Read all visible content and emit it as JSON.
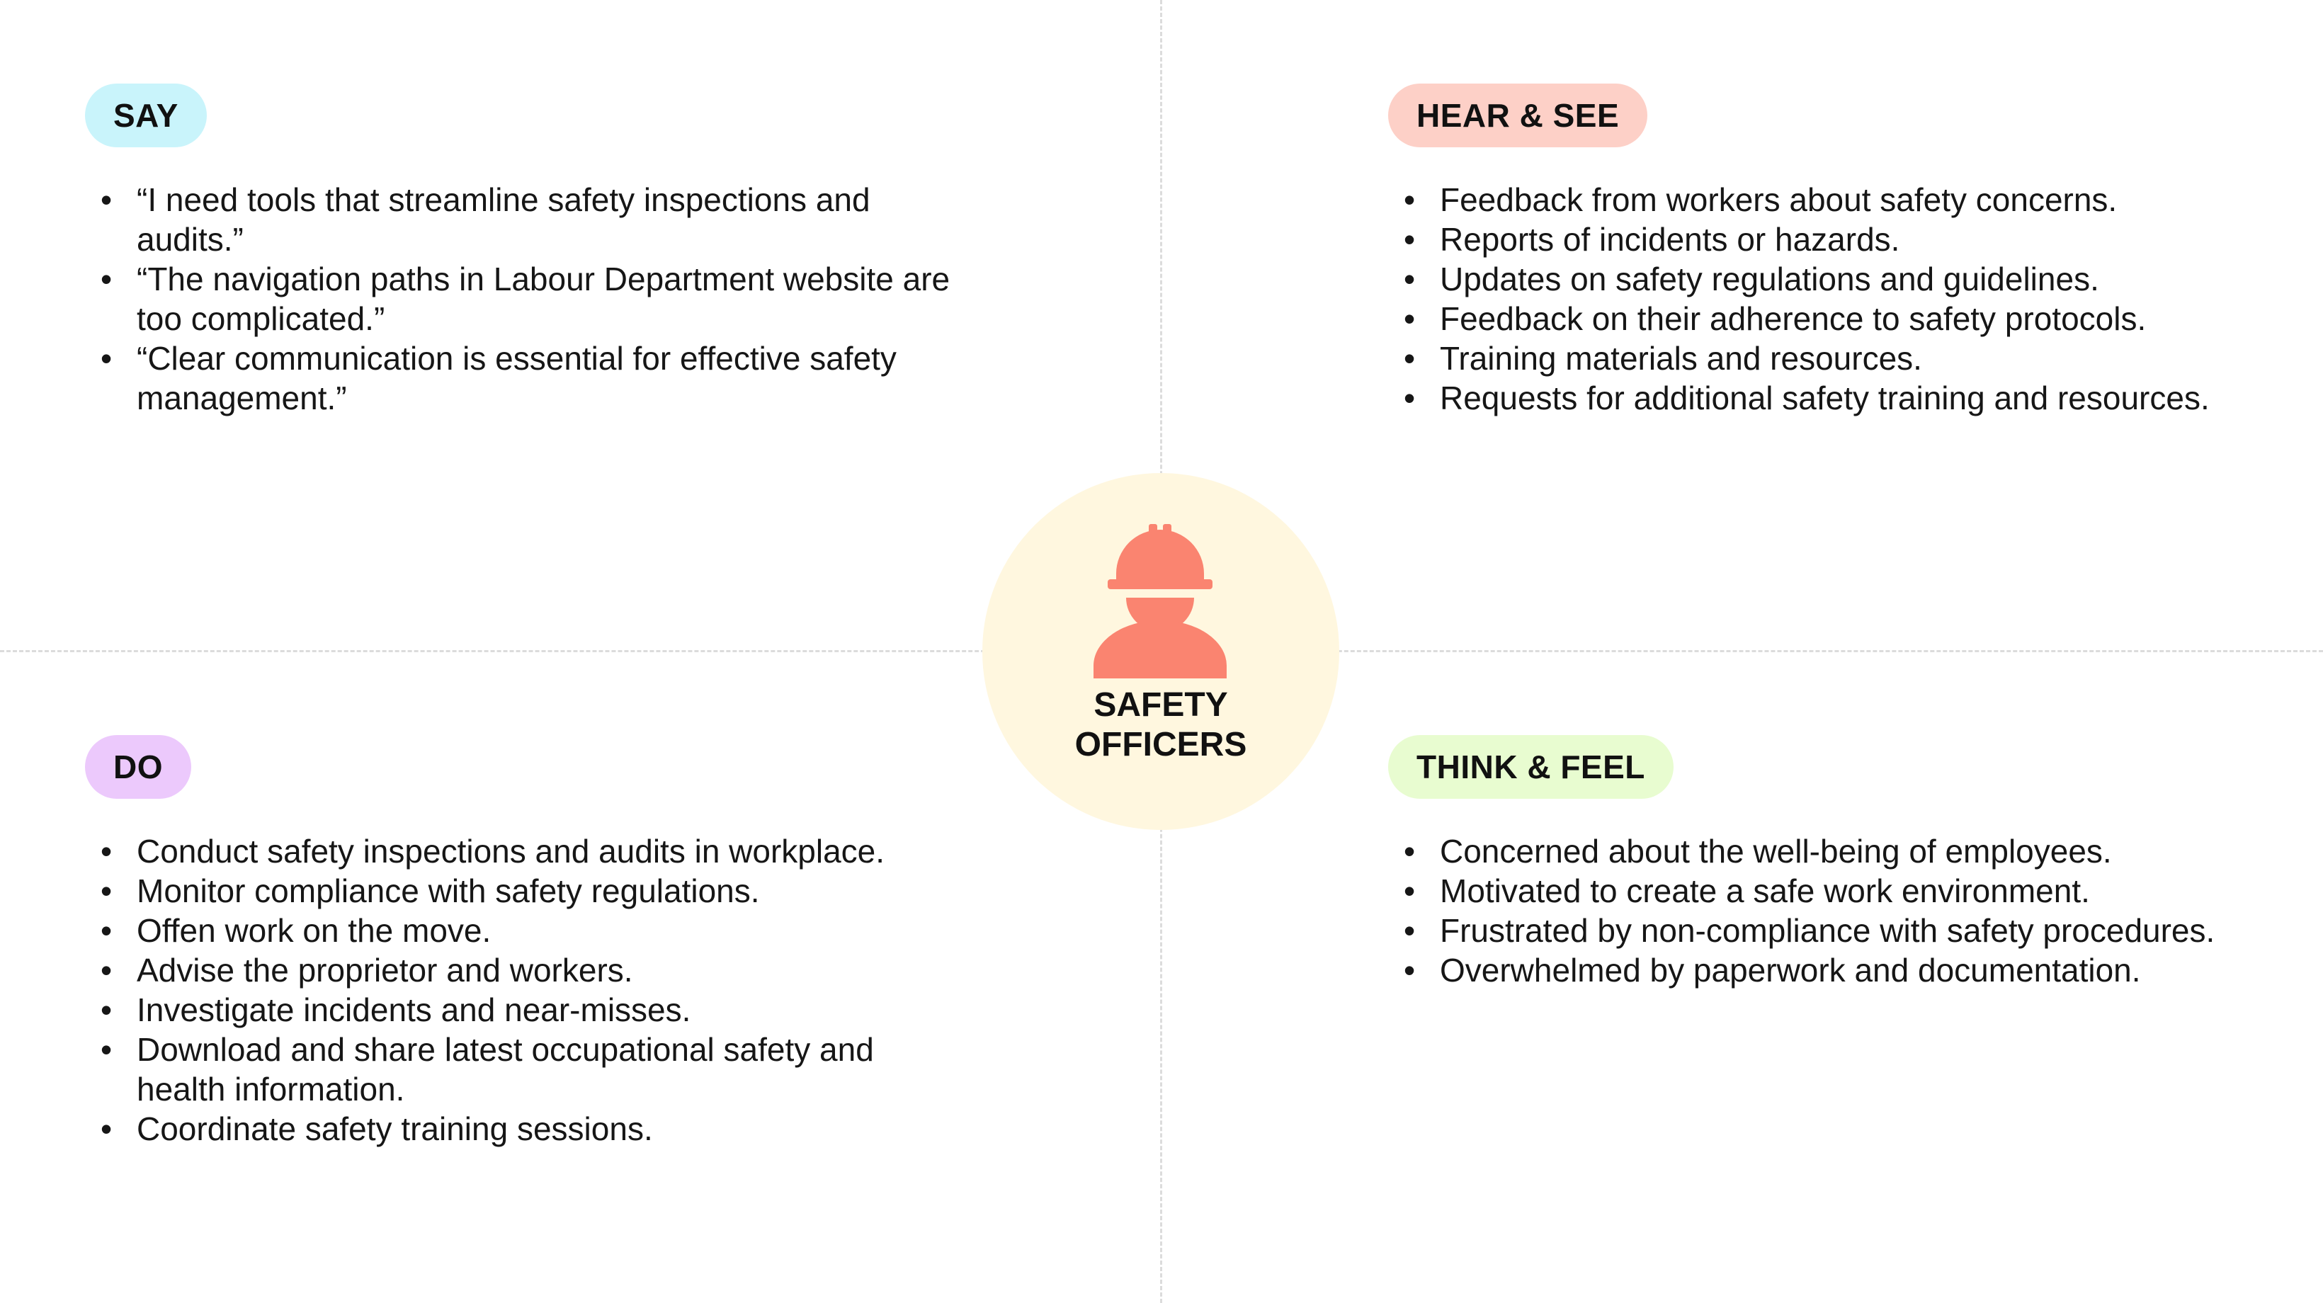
{
  "center": {
    "label_line1": "SAFETY",
    "label_line2": "OFFICERS",
    "icon": "safety-officer-hardhat-icon",
    "circle_color": "#fff7df",
    "icon_color": "#fa8470"
  },
  "quadrants": {
    "say": {
      "title": "SAY",
      "pill_color": "#c9f4fb",
      "items": [
        "“I need tools that streamline safety inspections and audits.”",
        "“The navigation paths in Labour Department website are too complicated.”",
        "“Clear communication is essential for effective safety management.”"
      ]
    },
    "hear_see": {
      "title": "HEAR & SEE",
      "pill_color": "#fdd0c7",
      "items": [
        "Feedback from workers about safety concerns.",
        "Reports of incidents or hazards.",
        "Updates on safety regulations and guidelines.",
        "Feedback on their adherence to safety protocols.",
        "Training materials and resources.",
        "Requests for additional safety training and resources."
      ]
    },
    "do": {
      "title": "DO",
      "pill_color": "#ecc9fc",
      "items": [
        "Conduct safety inspections and audits in workplace.",
        "Monitor compliance with safety regulations.",
        "Offen work on the move.",
        "Advise the proprietor and workers.",
        "Investigate incidents and near-misses.",
        "Download and share latest occupational safety and health information.",
        "Coordinate safety training sessions."
      ]
    },
    "think_feel": {
      "title": "THINK & FEEL",
      "pill_color": "#e8fcd0",
      "items": [
        "Concerned about the well-being of employees.",
        "Motivated to create a safe work environment.",
        "Frustrated by non-compliance with safety procedures.",
        "Overwhelmed by paperwork and documentation."
      ]
    }
  }
}
